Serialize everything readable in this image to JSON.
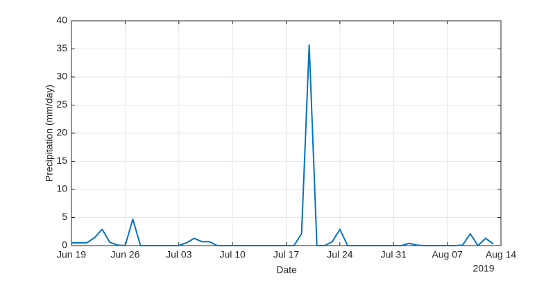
{
  "chart_data": {
    "type": "line",
    "x_label": "Date",
    "y_label": "Precipitation (mm/day)",
    "x_year_label": "2019",
    "x": [
      "2019-06-19",
      "2019-06-20",
      "2019-06-21",
      "2019-06-22",
      "2019-06-23",
      "2019-06-24",
      "2019-06-25",
      "2019-06-26",
      "2019-06-27",
      "2019-06-28",
      "2019-06-29",
      "2019-06-30",
      "2019-07-01",
      "2019-07-02",
      "2019-07-03",
      "2019-07-04",
      "2019-07-05",
      "2019-07-06",
      "2019-07-07",
      "2019-07-08",
      "2019-07-09",
      "2019-07-10",
      "2019-07-11",
      "2019-07-12",
      "2019-07-13",
      "2019-07-14",
      "2019-07-15",
      "2019-07-16",
      "2019-07-17",
      "2019-07-18",
      "2019-07-19",
      "2019-07-20",
      "2019-07-21",
      "2019-07-22",
      "2019-07-23",
      "2019-07-24",
      "2019-07-25",
      "2019-07-26",
      "2019-07-27",
      "2019-07-28",
      "2019-07-29",
      "2019-07-30",
      "2019-07-31",
      "2019-08-01",
      "2019-08-02",
      "2019-08-03",
      "2019-08-04",
      "2019-08-05",
      "2019-08-06",
      "2019-08-07",
      "2019-08-08",
      "2019-08-09",
      "2019-08-10",
      "2019-08-11",
      "2019-08-12",
      "2019-08-13"
    ],
    "values": [
      0.5,
      0.5,
      0.5,
      1.4,
      2.9,
      0.6,
      0.1,
      0,
      4.7,
      0,
      0,
      0,
      0,
      0,
      0,
      0.5,
      1.3,
      0.7,
      0.7,
      0,
      0,
      0,
      0,
      0,
      0,
      0,
      0,
      0,
      0,
      0,
      2.1,
      35.7,
      0,
      0,
      0.7,
      2.9,
      0,
      0,
      0,
      0,
      0,
      0,
      0,
      0,
      0.4,
      0.1,
      0,
      0,
      0,
      0,
      0,
      0.1,
      2.1,
      0,
      1.3,
      0.3
    ],
    "color": "#0072bd",
    "xlim": [
      "2019-06-19",
      "2019-08-14"
    ],
    "xticks": [
      {
        "value": "2019-06-19",
        "label": "Jun 19"
      },
      {
        "value": "2019-06-26",
        "label": "Jun 26"
      },
      {
        "value": "2019-07-03",
        "label": "Jul 03"
      },
      {
        "value": "2019-07-10",
        "label": "Jul 10"
      },
      {
        "value": "2019-07-17",
        "label": "Jul 17"
      },
      {
        "value": "2019-07-24",
        "label": "Jul 24"
      },
      {
        "value": "2019-07-31",
        "label": "Jul 31"
      },
      {
        "value": "2019-08-07",
        "label": "Aug 07"
      },
      {
        "value": "2019-08-14",
        "label": "Aug 14"
      }
    ],
    "ylim": [
      0,
      40
    ],
    "yticks": [
      0,
      5,
      10,
      15,
      20,
      25,
      30,
      35,
      40
    ],
    "grid": true
  }
}
